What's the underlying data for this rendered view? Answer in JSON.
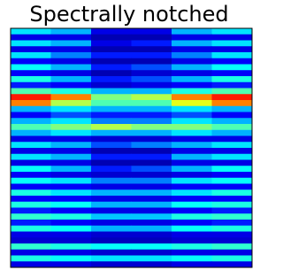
{
  "chart_data": {
    "type": "heatmap",
    "title": "Spectrally notched",
    "colormap": "jet",
    "vlim": [
      0,
      1
    ],
    "values": [
      [
        0.35,
        0.3,
        0.1,
        0.1,
        0.3,
        0.35
      ],
      [
        0.1,
        0.1,
        0.05,
        0.05,
        0.1,
        0.1
      ],
      [
        0.35,
        0.3,
        0.1,
        0.15,
        0.3,
        0.35
      ],
      [
        0.1,
        0.1,
        0.05,
        0.05,
        0.1,
        0.1
      ],
      [
        0.35,
        0.25,
        0.15,
        0.15,
        0.25,
        0.35
      ],
      [
        0.12,
        0.1,
        0.05,
        0.05,
        0.1,
        0.12
      ],
      [
        0.38,
        0.3,
        0.15,
        0.2,
        0.3,
        0.38
      ],
      [
        0.12,
        0.1,
        0.05,
        0.08,
        0.1,
        0.12
      ],
      [
        0.4,
        0.3,
        0.15,
        0.2,
        0.3,
        0.4
      ],
      [
        0.15,
        0.12,
        0.08,
        0.1,
        0.12,
        0.15
      ],
      [
        0.45,
        0.4,
        0.3,
        0.3,
        0.4,
        0.45
      ],
      [
        0.85,
        0.75,
        0.5,
        0.55,
        0.75,
        0.85
      ],
      [
        0.75,
        0.55,
        0.45,
        0.45,
        0.6,
        0.75
      ],
      [
        0.3,
        0.35,
        0.3,
        0.3,
        0.35,
        0.3
      ],
      [
        0.12,
        0.2,
        0.15,
        0.15,
        0.2,
        0.12
      ],
      [
        0.3,
        0.35,
        0.25,
        0.25,
        0.35,
        0.3
      ],
      [
        0.45,
        0.5,
        0.55,
        0.5,
        0.5,
        0.45
      ],
      [
        0.3,
        0.35,
        0.3,
        0.3,
        0.35,
        0.3
      ],
      [
        0.1,
        0.1,
        0.08,
        0.08,
        0.1,
        0.1
      ],
      [
        0.35,
        0.3,
        0.2,
        0.25,
        0.3,
        0.35
      ],
      [
        0.1,
        0.1,
        0.05,
        0.05,
        0.1,
        0.1
      ],
      [
        0.35,
        0.3,
        0.15,
        0.15,
        0.3,
        0.35
      ],
      [
        0.1,
        0.1,
        0.05,
        0.05,
        0.1,
        0.1
      ],
      [
        0.38,
        0.3,
        0.15,
        0.2,
        0.3,
        0.38
      ],
      [
        0.12,
        0.1,
        0.08,
        0.08,
        0.1,
        0.12
      ],
      [
        0.38,
        0.35,
        0.25,
        0.25,
        0.35,
        0.38
      ],
      [
        0.12,
        0.12,
        0.1,
        0.1,
        0.12,
        0.12
      ],
      [
        0.4,
        0.35,
        0.3,
        0.3,
        0.35,
        0.4
      ],
      [
        0.12,
        0.12,
        0.1,
        0.1,
        0.12,
        0.12
      ],
      [
        0.4,
        0.38,
        0.3,
        0.3,
        0.38,
        0.4
      ],
      [
        0.15,
        0.12,
        0.1,
        0.1,
        0.12,
        0.15
      ],
      [
        0.42,
        0.4,
        0.32,
        0.32,
        0.4,
        0.42
      ],
      [
        0.15,
        0.12,
        0.1,
        0.1,
        0.12,
        0.15
      ],
      [
        0.4,
        0.38,
        0.3,
        0.3,
        0.38,
        0.4
      ],
      [
        0.1,
        0.1,
        0.08,
        0.08,
        0.1,
        0.1
      ],
      [
        0.08,
        0.08,
        0.06,
        0.06,
        0.08,
        0.08
      ],
      [
        0.42,
        0.4,
        0.38,
        0.38,
        0.4,
        0.42
      ],
      [
        0.1,
        0.1,
        0.08,
        0.08,
        0.1,
        0.1
      ],
      [
        0.4,
        0.38,
        0.35,
        0.35,
        0.38,
        0.4
      ],
      [
        0.1,
        0.1,
        0.08,
        0.08,
        0.1,
        0.1
      ]
    ]
  }
}
